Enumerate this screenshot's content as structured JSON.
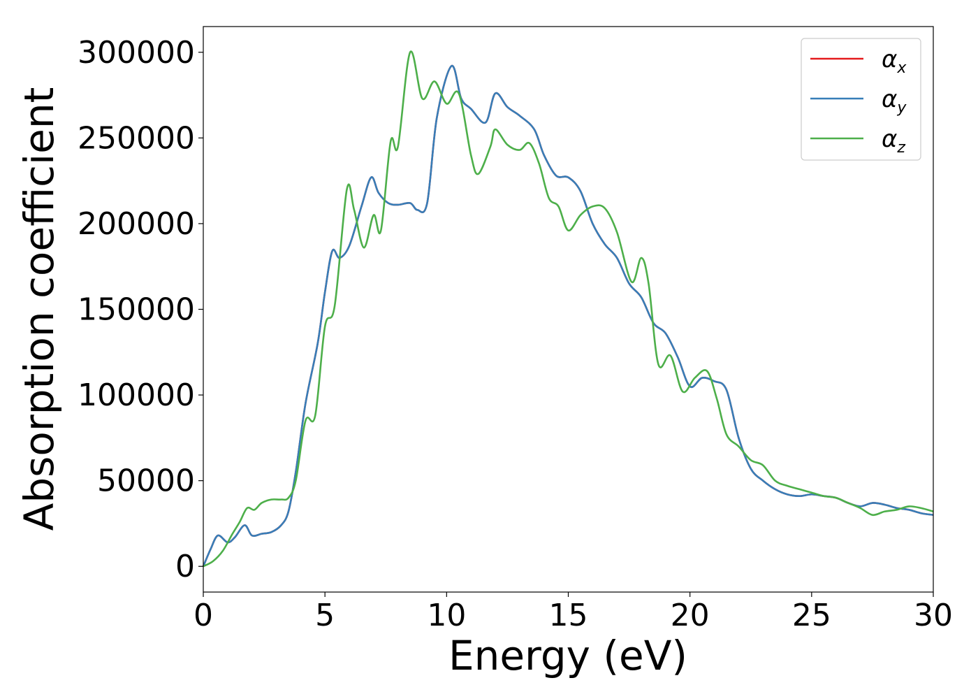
{
  "chart_data": {
    "type": "line",
    "title": "",
    "xlabel": "Energy (eV)",
    "ylabel": "Absorption coefficient",
    "xlim": [
      0,
      30
    ],
    "ylim": [
      -15000,
      315000
    ],
    "xticks": [
      0,
      5,
      10,
      15,
      20,
      25,
      30
    ],
    "yticks": [
      0,
      50000,
      100000,
      150000,
      200000,
      250000,
      300000
    ],
    "grid": false,
    "legend_position": "top-right",
    "series": [
      {
        "name": "αx",
        "symbol": "α",
        "subscript": "x",
        "color": "#e41a1c",
        "points": [
          [
            0,
            0
          ],
          [
            0.3,
            10000
          ],
          [
            0.6,
            18000
          ],
          [
            1.0,
            14000
          ],
          [
            1.3,
            17000
          ],
          [
            1.7,
            24000
          ],
          [
            2.0,
            18000
          ],
          [
            2.4,
            19000
          ],
          [
            2.8,
            20000
          ],
          [
            3.2,
            24000
          ],
          [
            3.5,
            32000
          ],
          [
            3.8,
            55000
          ],
          [
            4.2,
            95000
          ],
          [
            4.7,
            130000
          ],
          [
            5.0,
            160000
          ],
          [
            5.3,
            184000
          ],
          [
            5.6,
            180000
          ],
          [
            6.0,
            187000
          ],
          [
            6.5,
            210000
          ],
          [
            6.9,
            227000
          ],
          [
            7.2,
            218000
          ],
          [
            7.6,
            212000
          ],
          [
            8.0,
            211000
          ],
          [
            8.5,
            212000
          ],
          [
            8.8,
            208000
          ],
          [
            9.2,
            212000
          ],
          [
            9.6,
            262000
          ],
          [
            10.2,
            292000
          ],
          [
            10.6,
            273000
          ],
          [
            11.0,
            267000
          ],
          [
            11.6,
            259000
          ],
          [
            12.0,
            276000
          ],
          [
            12.5,
            268000
          ],
          [
            13.0,
            263000
          ],
          [
            13.6,
            255000
          ],
          [
            14.0,
            240000
          ],
          [
            14.5,
            228000
          ],
          [
            15.0,
            227000
          ],
          [
            15.5,
            219000
          ],
          [
            16.0,
            200000
          ],
          [
            16.5,
            188000
          ],
          [
            17.0,
            180000
          ],
          [
            17.5,
            165000
          ],
          [
            18.0,
            157000
          ],
          [
            18.5,
            142000
          ],
          [
            19.0,
            136000
          ],
          [
            19.5,
            122000
          ],
          [
            20.0,
            105000
          ],
          [
            20.5,
            110000
          ],
          [
            21.0,
            108000
          ],
          [
            21.5,
            103000
          ],
          [
            22.0,
            75000
          ],
          [
            22.5,
            57000
          ],
          [
            23.0,
            50000
          ],
          [
            23.5,
            45000
          ],
          [
            24.0,
            42000
          ],
          [
            24.5,
            41000
          ],
          [
            25.0,
            42000
          ],
          [
            25.5,
            41000
          ],
          [
            26.0,
            40000
          ],
          [
            26.5,
            37000
          ],
          [
            27.0,
            35000
          ],
          [
            27.5,
            37000
          ],
          [
            28.0,
            36000
          ],
          [
            28.5,
            34000
          ],
          [
            29.0,
            33000
          ],
          [
            29.5,
            31000
          ],
          [
            30.0,
            30000
          ]
        ]
      },
      {
        "name": "αy",
        "symbol": "α",
        "subscript": "y",
        "color": "#377eb8",
        "points": [
          [
            0,
            0
          ],
          [
            0.3,
            10000
          ],
          [
            0.6,
            18000
          ],
          [
            1.0,
            14000
          ],
          [
            1.3,
            17000
          ],
          [
            1.7,
            24000
          ],
          [
            2.0,
            18000
          ],
          [
            2.4,
            19000
          ],
          [
            2.8,
            20000
          ],
          [
            3.2,
            24000
          ],
          [
            3.5,
            32000
          ],
          [
            3.8,
            55000
          ],
          [
            4.2,
            95000
          ],
          [
            4.7,
            130000
          ],
          [
            5.0,
            160000
          ],
          [
            5.3,
            184000
          ],
          [
            5.6,
            180000
          ],
          [
            6.0,
            187000
          ],
          [
            6.5,
            210000
          ],
          [
            6.9,
            227000
          ],
          [
            7.2,
            218000
          ],
          [
            7.6,
            212000
          ],
          [
            8.0,
            211000
          ],
          [
            8.5,
            212000
          ],
          [
            8.8,
            208000
          ],
          [
            9.2,
            212000
          ],
          [
            9.6,
            262000
          ],
          [
            10.2,
            292000
          ],
          [
            10.6,
            273000
          ],
          [
            11.0,
            267000
          ],
          [
            11.6,
            259000
          ],
          [
            12.0,
            276000
          ],
          [
            12.5,
            268000
          ],
          [
            13.0,
            263000
          ],
          [
            13.6,
            255000
          ],
          [
            14.0,
            240000
          ],
          [
            14.5,
            228000
          ],
          [
            15.0,
            227000
          ],
          [
            15.5,
            219000
          ],
          [
            16.0,
            200000
          ],
          [
            16.5,
            188000
          ],
          [
            17.0,
            180000
          ],
          [
            17.5,
            165000
          ],
          [
            18.0,
            157000
          ],
          [
            18.5,
            142000
          ],
          [
            19.0,
            136000
          ],
          [
            19.5,
            122000
          ],
          [
            20.0,
            105000
          ],
          [
            20.5,
            110000
          ],
          [
            21.0,
            108000
          ],
          [
            21.5,
            103000
          ],
          [
            22.0,
            75000
          ],
          [
            22.5,
            57000
          ],
          [
            23.0,
            50000
          ],
          [
            23.5,
            45000
          ],
          [
            24.0,
            42000
          ],
          [
            24.5,
            41000
          ],
          [
            25.0,
            42000
          ],
          [
            25.5,
            41000
          ],
          [
            26.0,
            40000
          ],
          [
            26.5,
            37000
          ],
          [
            27.0,
            35000
          ],
          [
            27.5,
            37000
          ],
          [
            28.0,
            36000
          ],
          [
            28.5,
            34000
          ],
          [
            29.0,
            33000
          ],
          [
            29.5,
            31000
          ],
          [
            30.0,
            30000
          ]
        ]
      },
      {
        "name": "αz",
        "symbol": "α",
        "subscript": "z",
        "color": "#4daf4a",
        "points": [
          [
            0,
            0
          ],
          [
            0.4,
            3000
          ],
          [
            0.8,
            9000
          ],
          [
            1.2,
            19000
          ],
          [
            1.5,
            26000
          ],
          [
            1.8,
            34000
          ],
          [
            2.1,
            33000
          ],
          [
            2.4,
            37000
          ],
          [
            2.8,
            39000
          ],
          [
            3.2,
            39000
          ],
          [
            3.5,
            40000
          ],
          [
            3.8,
            50000
          ],
          [
            4.2,
            85000
          ],
          [
            4.6,
            88000
          ],
          [
            5.0,
            140000
          ],
          [
            5.4,
            152000
          ],
          [
            5.9,
            220000
          ],
          [
            6.2,
            208000
          ],
          [
            6.6,
            186000
          ],
          [
            7.0,
            205000
          ],
          [
            7.3,
            196000
          ],
          [
            7.7,
            248000
          ],
          [
            8.0,
            245000
          ],
          [
            8.5,
            300000
          ],
          [
            9.0,
            273000
          ],
          [
            9.5,
            283000
          ],
          [
            10.0,
            270000
          ],
          [
            10.5,
            276000
          ],
          [
            11.0,
            240000
          ],
          [
            11.3,
            229000
          ],
          [
            11.8,
            245000
          ],
          [
            12.0,
            255000
          ],
          [
            12.5,
            246000
          ],
          [
            13.0,
            243000
          ],
          [
            13.4,
            247000
          ],
          [
            13.8,
            235000
          ],
          [
            14.2,
            215000
          ],
          [
            14.6,
            210000
          ],
          [
            15.0,
            196000
          ],
          [
            15.5,
            205000
          ],
          [
            16.0,
            210000
          ],
          [
            16.5,
            209000
          ],
          [
            17.0,
            195000
          ],
          [
            17.6,
            166000
          ],
          [
            18.0,
            180000
          ],
          [
            18.3,
            165000
          ],
          [
            18.7,
            118000
          ],
          [
            19.2,
            123000
          ],
          [
            19.7,
            102000
          ],
          [
            20.2,
            110000
          ],
          [
            20.7,
            114000
          ],
          [
            21.1,
            98000
          ],
          [
            21.5,
            77000
          ],
          [
            22.0,
            70000
          ],
          [
            22.5,
            62000
          ],
          [
            23.0,
            59000
          ],
          [
            23.5,
            50000
          ],
          [
            24.0,
            47000
          ],
          [
            24.5,
            45000
          ],
          [
            25.0,
            43000
          ],
          [
            25.5,
            41000
          ],
          [
            26.0,
            40000
          ],
          [
            26.5,
            37000
          ],
          [
            27.0,
            34000
          ],
          [
            27.5,
            30000
          ],
          [
            28.0,
            32000
          ],
          [
            28.5,
            33000
          ],
          [
            29.0,
            35000
          ],
          [
            29.5,
            34000
          ],
          [
            30.0,
            32000
          ]
        ]
      }
    ]
  }
}
